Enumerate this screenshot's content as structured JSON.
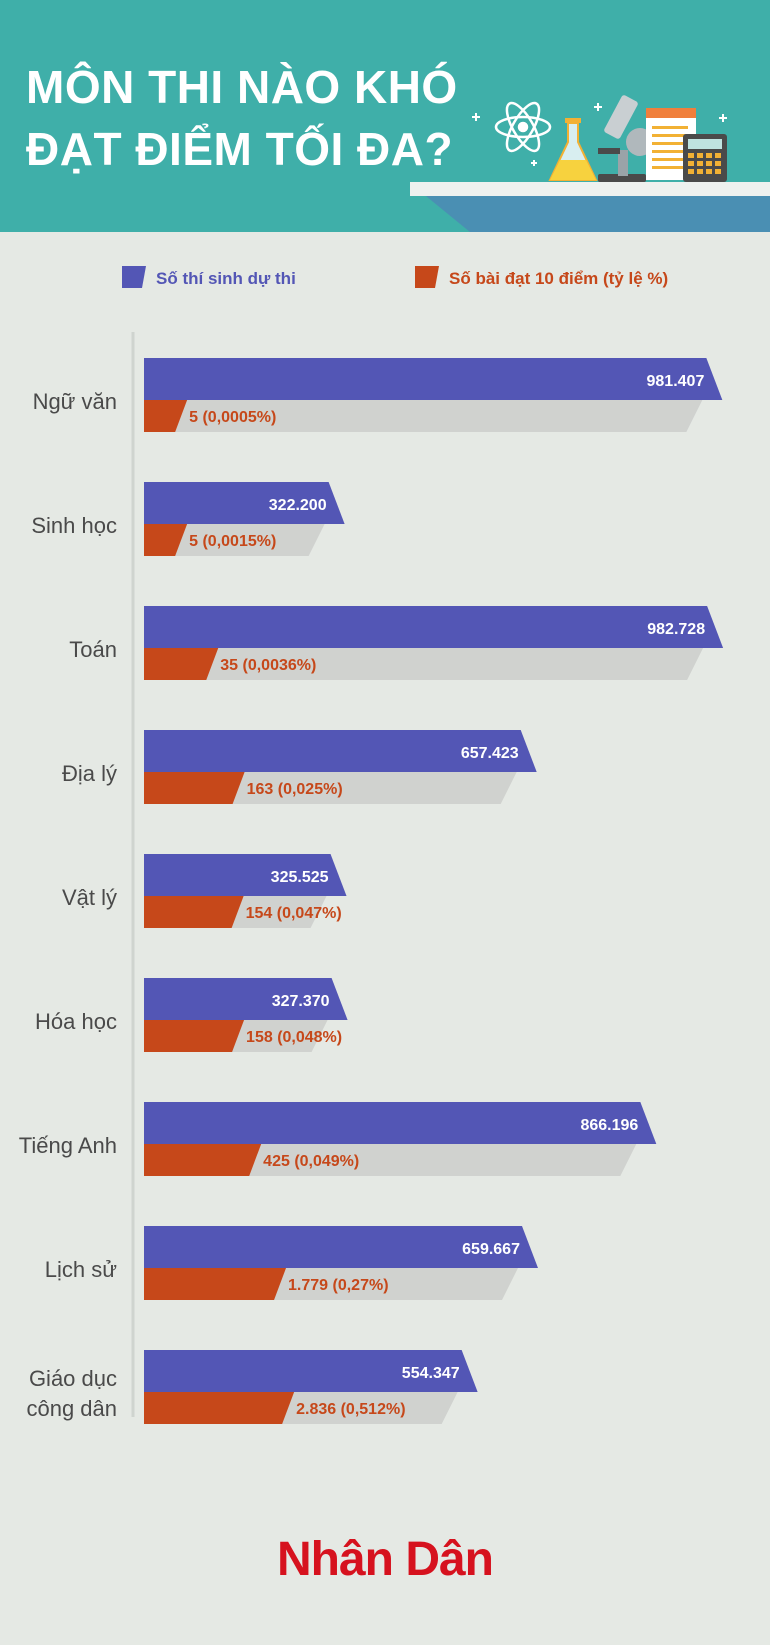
{
  "header": {
    "title_line1": "MÔN THI NÀO KHÓ",
    "title_line2": "ĐẠT ĐIỂM TỐI ĐA?"
  },
  "colors": {
    "header_bg": "#3fafa9",
    "page_bg": "#e5e9e4",
    "candidates": "#5356b5",
    "perfect": "#c6481a",
    "shadow": "#d0d2cf",
    "logo": "#d6121e"
  },
  "icons": [
    "atom-icon",
    "flask-icon",
    "microscope-icon",
    "notebook-icon",
    "calculator-icon"
  ],
  "chart_data": {
    "type": "bar",
    "orientation": "horizontal",
    "legend_position": "top",
    "categories": [
      "Ngữ văn",
      "Sinh học",
      "Toán",
      "Địa lý",
      "Vật lý",
      "Hóa học",
      "Tiếng Anh",
      "Lịch sử",
      "Giáo dục công dân"
    ],
    "series": [
      {
        "name": "Số thí sinh dự thi",
        "values": [
          981407,
          322200,
          982728,
          657423,
          325525,
          327370,
          866196,
          659667,
          554347
        ],
        "labels": [
          "981.407",
          "322.200",
          "982.728",
          "657.423",
          "325.525",
          "327.370",
          "866.196",
          "659.667",
          "554.347"
        ]
      },
      {
        "name": "Số bài đạt 10 điểm (tỷ lệ %)",
        "values": [
          5,
          5,
          35,
          163,
          154,
          158,
          425,
          1779,
          2836
        ],
        "percent": [
          0.0005,
          0.0015,
          0.0036,
          0.025,
          0.047,
          0.048,
          0.049,
          0.27,
          0.512
        ],
        "labels": [
          "5 (0,0005%)",
          "5 (0,0015%)",
          "35 (0,0036%)",
          "163 (0,025%)",
          "154 (0,047%)",
          "158 (0,048%)",
          "425 (0,049%)",
          "1.779 (0,27%)",
          "2.836 (0,512%)"
        ]
      }
    ],
    "grid": false
  },
  "footer": {
    "logo": "Nhân Dân"
  }
}
